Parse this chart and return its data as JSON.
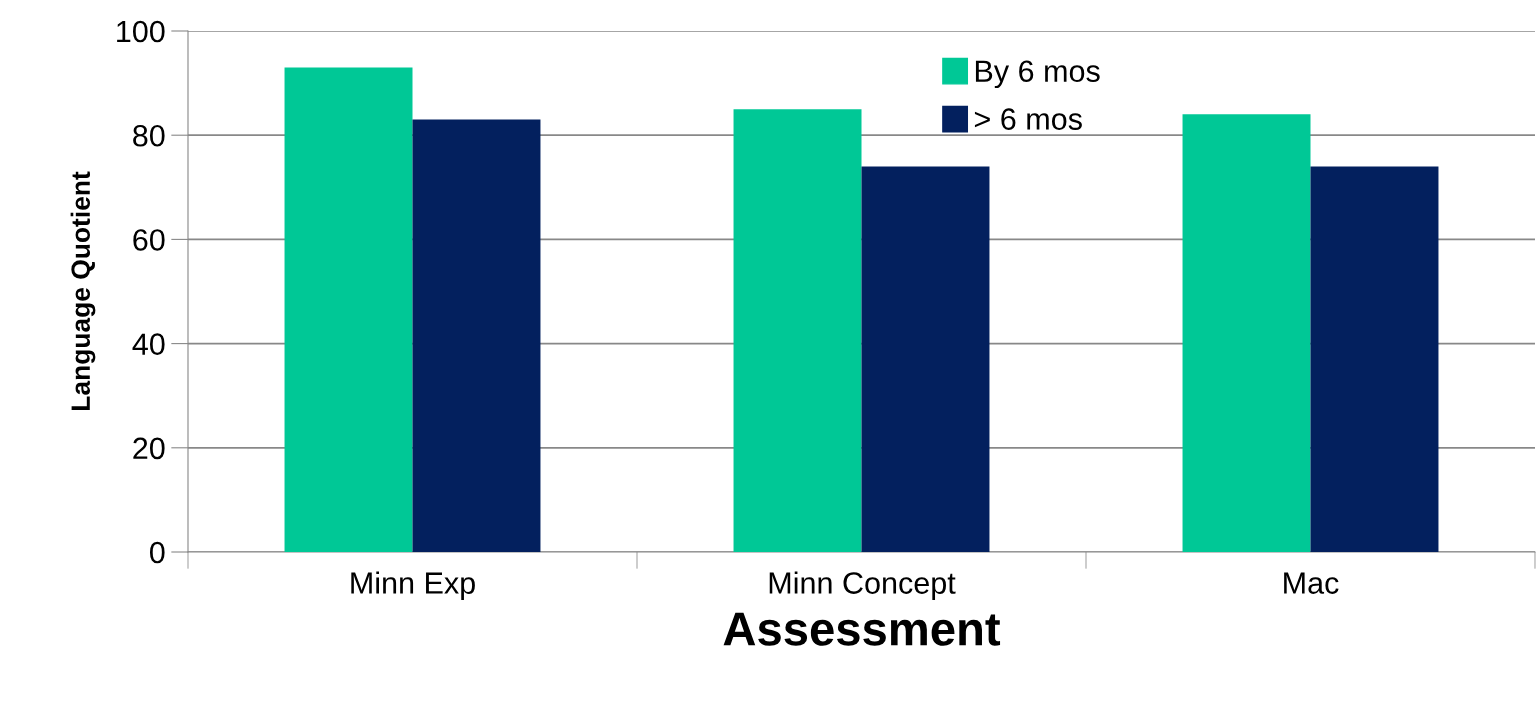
{
  "chart_data": {
    "type": "bar",
    "xlabel": "Assessment",
    "ylabel": "Language Quotient",
    "categories": [
      "Minn Exp",
      "Minn Concept",
      "Mac"
    ],
    "series": [
      {
        "name": "By 6 mos",
        "color": "#00c896",
        "values": [
          93,
          85,
          84
        ]
      },
      {
        "name": "> 6 mos",
        "color": "#03205e",
        "values": [
          83,
          74,
          74
        ]
      }
    ],
    "ylim": [
      0,
      100
    ],
    "yticks": [
      0,
      20,
      40,
      60,
      80,
      100
    ],
    "grid": "y",
    "legend": "top"
  }
}
